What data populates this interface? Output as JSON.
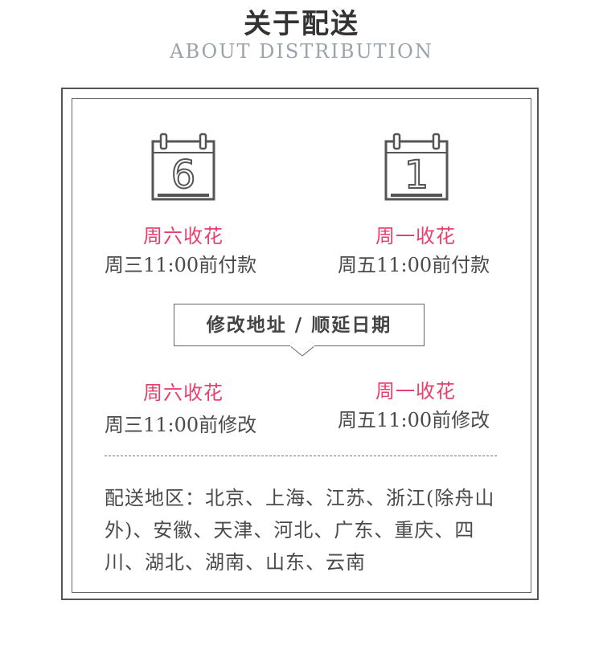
{
  "header": {
    "title": "关于配送",
    "subtitle": "ABOUT DISTRIBUTION"
  },
  "calendars": [
    {
      "icon": "calendar-icon",
      "day_number": "6"
    },
    {
      "icon": "calendar-icon",
      "day_number": "1"
    }
  ],
  "payment": {
    "left_label": "周六收花",
    "left_text": "周三11:00前付款",
    "right_label": "周一收花",
    "right_text": "周五11:00前付款"
  },
  "callout": {
    "text": "修改地址 / 顺延日期"
  },
  "modify": {
    "left_label": "周六收花",
    "left_text": "周三11:00前修改",
    "right_label": "周一收花",
    "right_text": "周五11:00前修改"
  },
  "areas": {
    "text": "配送地区：北京、上海、江苏、浙江(除舟山外)、安徽、天津、河北、广东、重庆、四川、湖北、湖南、山东、云南"
  },
  "colors": {
    "accent": "#e8406e",
    "text": "#4a4a4a",
    "subtitle": "#9aa2aa",
    "border": "#555555"
  }
}
